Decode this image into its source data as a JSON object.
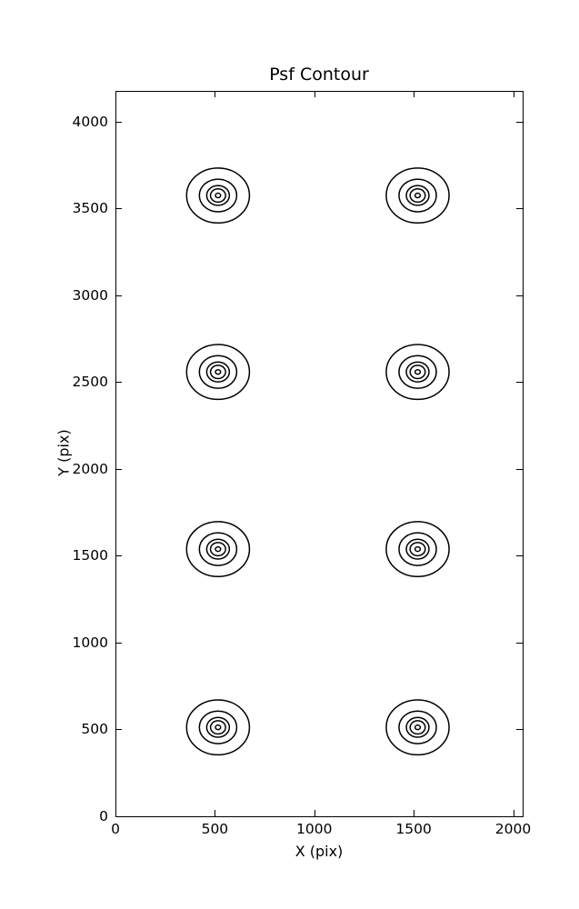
{
  "figure": {
    "background_color": "#ffffff",
    "line_color": "#000000"
  },
  "chart_data": {
    "type": "contour",
    "title": "Psf Contour",
    "xlabel": "X (pix)",
    "ylabel": "Y (pix)",
    "xlim": [
      0,
      2048
    ],
    "ylim": [
      0,
      4176
    ],
    "x_ticks": [
      0,
      500,
      1000,
      1500,
      2000
    ],
    "y_ticks": [
      0,
      500,
      1000,
      1500,
      2000,
      2500,
      3000,
      3500,
      4000
    ],
    "grid": false,
    "legend": "none",
    "line_color": "#000000",
    "contour_centers": [
      {
        "x": 516,
        "y": 512
      },
      {
        "x": 1520,
        "y": 512
      },
      {
        "x": 516,
        "y": 1538
      },
      {
        "x": 1520,
        "y": 1538
      },
      {
        "x": 516,
        "y": 2558
      },
      {
        "x": 1520,
        "y": 2558
      },
      {
        "x": 516,
        "y": 3574
      },
      {
        "x": 1520,
        "y": 3574
      }
    ],
    "ring_radii": [
      158,
      94,
      57,
      38,
      13
    ]
  }
}
